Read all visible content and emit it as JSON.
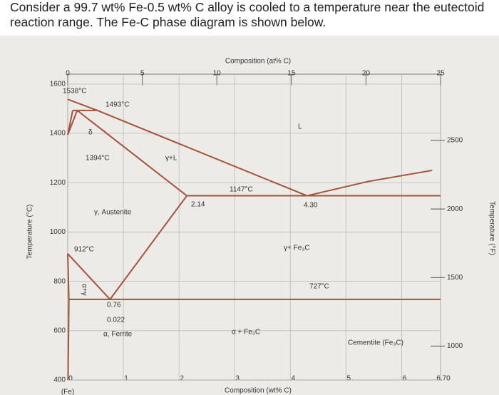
{
  "question": "Consider a 99.7 wt% Fe-0.5 wt% C alloy is cooled to a temperature near the eutectoid reaction range. The Fe-C phase diagram is shown below.",
  "chart_data": {
    "type": "phase-diagram",
    "top_axis_title": "Composition (at% C)",
    "x_axis_title": "Composition (wt% C)",
    "y_axis_title": "Temperature (°C)",
    "y2_axis_title": "Temperature (°F)",
    "x_origin_label": "(Fe)",
    "xlim": [
      0,
      6.7
    ],
    "xticks": [
      0,
      1,
      2,
      3,
      4,
      5,
      6,
      {
        "value": 6.7,
        "label": "6.70"
      }
    ],
    "x2lim": [
      0,
      25
    ],
    "x2ticks": [
      0,
      5,
      10,
      15,
      20,
      25
    ],
    "ylim": [
      400,
      1640
    ],
    "yticks": [
      400,
      600,
      800,
      1000,
      1200,
      1400,
      1600
    ],
    "y2lim": [
      752,
      2984
    ],
    "y2ticks": [
      1000,
      1500,
      2000,
      2500
    ],
    "grid": true,
    "color": "#a5533a",
    "lines": [
      {
        "x": [
          0,
          0.53,
          4.3
        ],
        "values": [
          1538,
          1493,
          1147
        ]
      },
      {
        "x": [
          4.3,
          5.4,
          6.55
        ],
        "values": [
          1147,
          1205,
          1250
        ]
      },
      {
        "x": [
          0.17,
          2.14
        ],
        "values": [
          1493,
          1147
        ]
      },
      {
        "x": [
          2.14,
          6.7
        ],
        "values": [
          1147,
          1147
        ]
      },
      {
        "x": [
          0.09,
          0.53
        ],
        "values": [
          1493,
          1493
        ]
      },
      {
        "x": [
          0.09,
          0
        ],
        "values": [
          1493,
          1394
        ]
      },
      {
        "x": [
          0.17,
          0
        ],
        "values": [
          1493,
          1394
        ]
      },
      {
        "x": [
          2.14,
          0.76
        ],
        "values": [
          1147,
          727
        ]
      },
      {
        "x": [
          0,
          0.76
        ],
        "values": [
          912,
          727
        ]
      },
      {
        "x": [
          0,
          0.022,
          0.005
        ],
        "values": [
          912,
          727,
          400
        ]
      },
      {
        "x": [
          0.022,
          6.7
        ],
        "values": [
          727,
          727
        ]
      }
    ],
    "annotations": [
      "1538°C",
      "1493°C",
      "1394°C",
      "γ+L",
      "L",
      "1147°C",
      "2.14",
      "4.30",
      "γ, Austenite",
      "912°C",
      "γ+ Fe₃C",
      "727°C",
      "0.76",
      "0.022",
      "α, Ferrite",
      "α + Fe₃C",
      "Cementite (Fe₃C)",
      "α+γ",
      "δ"
    ]
  }
}
